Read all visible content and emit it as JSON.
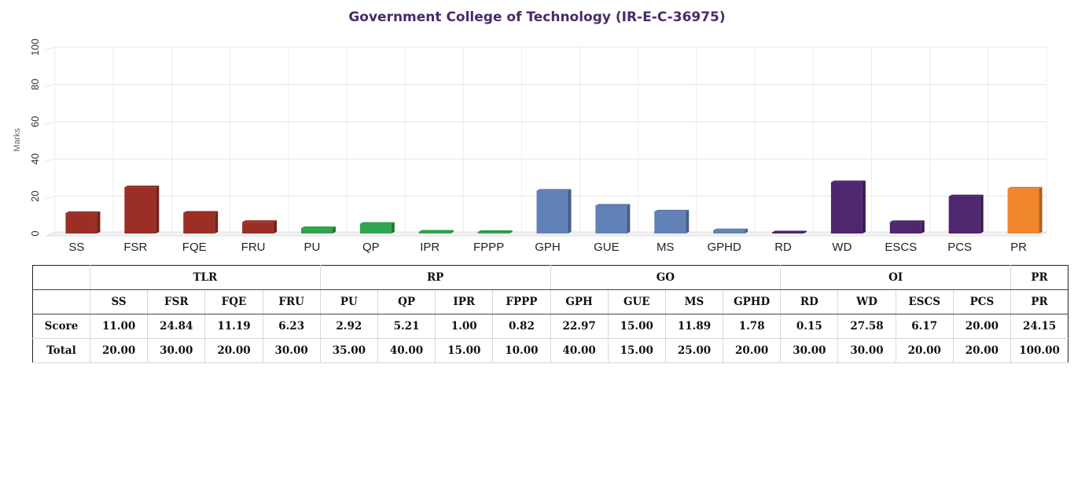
{
  "chart_data": {
    "type": "bar",
    "title": "Government College of Technology (IR-E-C-36975)",
    "ylabel": "Marks",
    "xlabel": "",
    "ylim": [
      0,
      100
    ],
    "yticks": [
      0,
      20,
      40,
      60,
      80,
      100
    ],
    "grid": true,
    "categories": [
      "SS",
      "FSR",
      "FQE",
      "FRU",
      "PU",
      "QP",
      "IPR",
      "FPPP",
      "GPH",
      "GUE",
      "MS",
      "GPHD",
      "RD",
      "WD",
      "ESCS",
      "PCS",
      "PR"
    ],
    "values": [
      11.0,
      24.84,
      11.19,
      6.23,
      2.92,
      5.21,
      1.0,
      0.82,
      22.97,
      15.0,
      11.89,
      1.78,
      0.15,
      27.58,
      6.17,
      20.0,
      24.15
    ],
    "groups": [
      "TLR",
      "TLR",
      "TLR",
      "TLR",
      "RP",
      "RP",
      "RP",
      "RP",
      "GO",
      "GO",
      "GO",
      "GO",
      "OI",
      "OI",
      "OI",
      "OI",
      "PR"
    ],
    "group_colors": {
      "TLR": "#9b2f26",
      "RP": "#2ea54e",
      "GO": "#6282b7",
      "OI": "#4f2670",
      "PR": "#f0862c"
    }
  },
  "table": {
    "groups": [
      {
        "label": "TLR",
        "span": 4
      },
      {
        "label": "RP",
        "span": 4
      },
      {
        "label": "GO",
        "span": 4
      },
      {
        "label": "OI",
        "span": 4
      },
      {
        "label": "PR",
        "span": 1
      }
    ],
    "headers": [
      "SS",
      "FSR",
      "FQE",
      "FRU",
      "PU",
      "QP",
      "IPR",
      "FPPP",
      "GPH",
      "GUE",
      "MS",
      "GPHD",
      "RD",
      "WD",
      "ESCS",
      "PCS",
      "PR"
    ],
    "rows": [
      {
        "label": "Score",
        "values": [
          "11.00",
          "24.84",
          "11.19",
          "6.23",
          "2.92",
          "5.21",
          "1.00",
          "0.82",
          "22.97",
          "15.00",
          "11.89",
          "1.78",
          "0.15",
          "27.58",
          "6.17",
          "20.00",
          "24.15"
        ]
      },
      {
        "label": "Total",
        "values": [
          "20.00",
          "30.00",
          "20.00",
          "30.00",
          "35.00",
          "40.00",
          "15.00",
          "10.00",
          "40.00",
          "15.00",
          "25.00",
          "20.00",
          "30.00",
          "30.00",
          "20.00",
          "20.00",
          "100.00"
        ]
      }
    ]
  }
}
